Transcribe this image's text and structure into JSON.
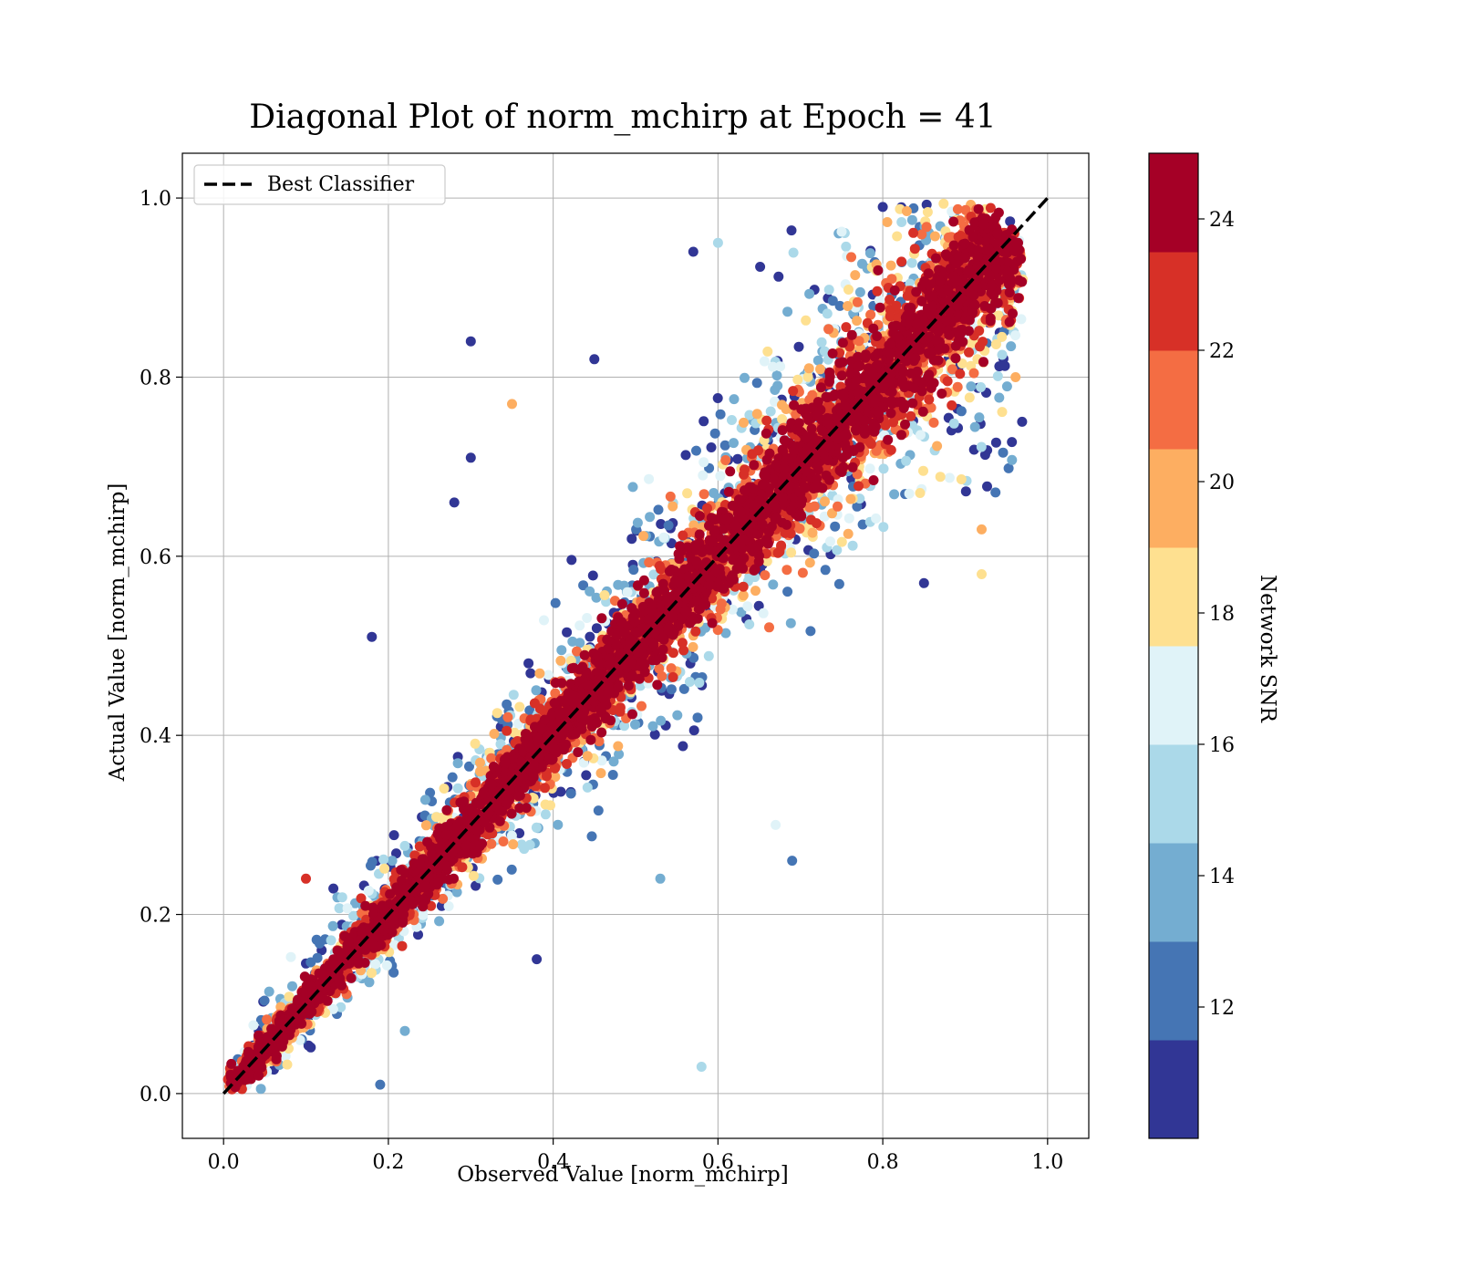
{
  "chart_data": {
    "type": "scatter",
    "title": "Diagonal Plot of norm_mchirp at Epoch = 41",
    "xlabel": "Observed Value [norm_mchirp]",
    "ylabel": "Actual Value [norm_mchirp]",
    "xlim": [
      -0.05,
      1.05
    ],
    "ylim": [
      -0.05,
      1.05
    ],
    "x_ticks": [
      "0.0",
      "0.2",
      "0.4",
      "0.6",
      "0.8",
      "1.0"
    ],
    "y_ticks": [
      "0.0",
      "0.2",
      "0.4",
      "0.6",
      "0.8",
      "1.0"
    ],
    "grid": true,
    "legend": {
      "position": "top-left",
      "entries": [
        "Best Classifier"
      ]
    },
    "reference_line": {
      "name": "Best Classifier",
      "style": "dashed",
      "color": "#000000",
      "points": [
        [
          0,
          0
        ],
        [
          1,
          1
        ]
      ]
    },
    "colorbar": {
      "label": "Network SNR",
      "range": [
        10,
        25
      ],
      "ticks": [
        "12",
        "14",
        "16",
        "18",
        "20",
        "22",
        "24"
      ],
      "bins": 10,
      "colors": [
        "#313695",
        "#4575b4",
        "#74add1",
        "#abd9e9",
        "#e0f3f8",
        "#fee090",
        "#fdae61",
        "#f46d43",
        "#d73027",
        "#a50026"
      ]
    },
    "point_cloud": {
      "description_x_range": [
        0.0,
        0.96
      ],
      "spread": "increases with value; high-SNR points (~24) cluster tightly along diagonal, low-SNR points (~10-14) scatter widely",
      "sample_outliers": [
        {
          "x": 0.3,
          "y": 0.84,
          "snr": 10.5
        },
        {
          "x": 0.45,
          "y": 0.82,
          "snr": 10.5
        },
        {
          "x": 0.35,
          "y": 0.77,
          "snr": 19.5
        },
        {
          "x": 0.3,
          "y": 0.71,
          "snr": 10.5
        },
        {
          "x": 0.18,
          "y": 0.51,
          "snr": 10.5
        },
        {
          "x": 0.58,
          "y": 0.03,
          "snr": 15.0
        },
        {
          "x": 0.69,
          "y": 0.26,
          "snr": 12.0
        },
        {
          "x": 0.85,
          "y": 0.57,
          "snr": 10.5
        },
        {
          "x": 0.92,
          "y": 0.58,
          "snr": 18.5
        },
        {
          "x": 0.92,
          "y": 0.63,
          "snr": 20.0
        },
        {
          "x": 0.1,
          "y": 0.24,
          "snr": 23.0
        },
        {
          "x": 0.38,
          "y": 0.15,
          "snr": 10.5
        },
        {
          "x": 0.19,
          "y": 0.01,
          "snr": 12.0
        },
        {
          "x": 0.57,
          "y": 0.94,
          "snr": 11.0
        },
        {
          "x": 0.6,
          "y": 0.95,
          "snr": 15.0
        },
        {
          "x": 0.8,
          "y": 0.99,
          "snr": 10.5
        },
        {
          "x": 0.28,
          "y": 0.66,
          "snr": 10.5
        },
        {
          "x": 0.67,
          "y": 0.3,
          "snr": 16.5
        },
        {
          "x": 0.53,
          "y": 0.24,
          "snr": 13.0
        },
        {
          "x": 0.22,
          "y": 0.07,
          "snr": 13.0
        }
      ]
    }
  }
}
